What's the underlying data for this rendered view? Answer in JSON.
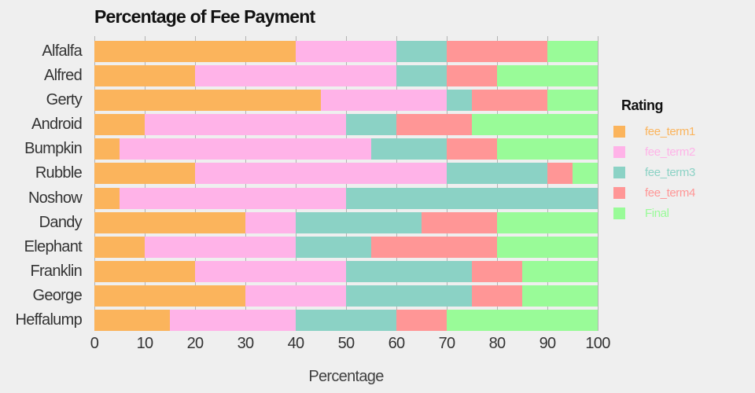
{
  "chart_data": {
    "type": "bar",
    "orientation": "horizontal",
    "stacked": true,
    "title": "Percentage of Fee Payment",
    "xlabel": "Percentage",
    "ylabel": "",
    "xlim": [
      0,
      100
    ],
    "xticks": [
      0,
      10,
      20,
      30,
      40,
      50,
      60,
      70,
      80,
      90,
      100
    ],
    "grid": "vertical",
    "legend_title": "Rating",
    "legend_position": "right",
    "categories": [
      "Alfalfa",
      "Alfred",
      "Gerty",
      "Android",
      "Bumpkin",
      "Rubble",
      "Noshow",
      "Dandy",
      "Elephant",
      "Franklin",
      "George",
      "Heffalump"
    ],
    "series": [
      {
        "name": "fee_term1",
        "color": "#FBB45C",
        "values": [
          40,
          20,
          45,
          10,
          5,
          20,
          5,
          30,
          10,
          20,
          30,
          15
        ]
      },
      {
        "name": "fee_term2",
        "color": "#FFB3E8",
        "values": [
          20,
          40,
          25,
          40,
          50,
          50,
          45,
          10,
          30,
          30,
          20,
          25
        ]
      },
      {
        "name": "fee_term3",
        "color": "#8BD2C5",
        "values": [
          10,
          10,
          5,
          10,
          15,
          20,
          50,
          25,
          15,
          25,
          25,
          20
        ]
      },
      {
        "name": "fee_term4",
        "color": "#FF9696",
        "values": [
          20,
          10,
          15,
          15,
          10,
          5,
          0,
          15,
          25,
          10,
          10,
          10
        ]
      },
      {
        "name": "Final",
        "color": "#99FB98",
        "values": [
          10,
          20,
          10,
          25,
          20,
          5,
          0,
          20,
          20,
          15,
          15,
          30
        ]
      }
    ]
  },
  "colors": {
    "background": "#EFEFEF",
    "gridline": "#B3B3B3",
    "title_text": "#111111",
    "axis_text": "#333333"
  }
}
